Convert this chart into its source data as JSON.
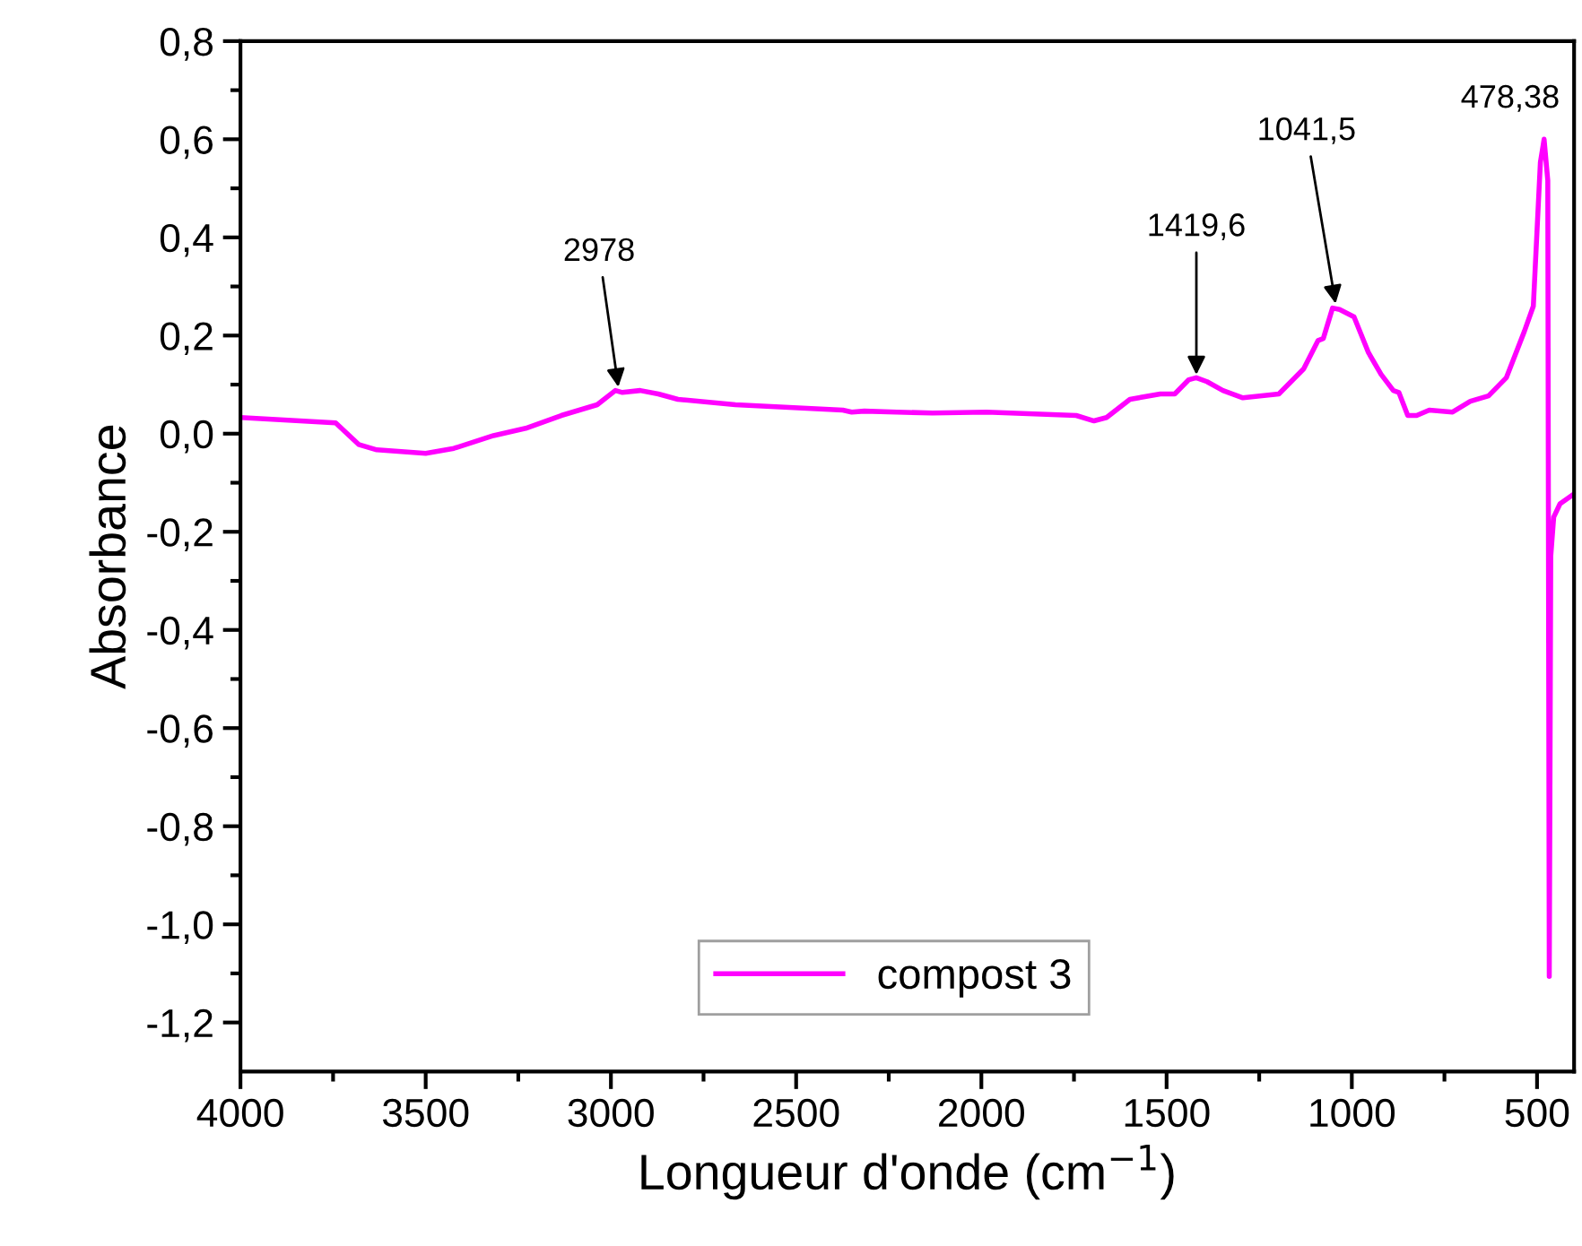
{
  "chart_data": {
    "type": "line",
    "xlabel": "Longueur d'onde (cm$^{−1}$)",
    "ylabel": "Absorbance",
    "xlim": [
      4000,
      400
    ],
    "ylim": [
      -1.3,
      0.8
    ],
    "xticks": [
      4000,
      {
        "value": 3750,
        "label": null
      },
      3500,
      {
        "value": 3250,
        "label": null
      },
      3000,
      {
        "value": 2750,
        "label": null
      },
      2500,
      {
        "value": 2250,
        "label": null
      },
      2000,
      {
        "value": 1750,
        "label": null
      },
      1500,
      {
        "value": 1250,
        "label": null
      },
      1000,
      {
        "value": 750,
        "label": null
      },
      500
    ],
    "yticks": [
      {
        "value": -1.2,
        "label": "-1,2"
      },
      {
        "value": -1.1,
        "label": null
      },
      {
        "value": -1.0,
        "label": "-1,0"
      },
      {
        "value": -0.9,
        "label": null
      },
      {
        "value": -0.8,
        "label": "-0,8"
      },
      {
        "value": -0.7,
        "label": null
      },
      {
        "value": -0.6,
        "label": "-0,6"
      },
      {
        "value": -0.5,
        "label": null
      },
      {
        "value": -0.4,
        "label": "-0,4"
      },
      {
        "value": -0.3,
        "label": null
      },
      {
        "value": -0.2,
        "label": "-0,2"
      },
      {
        "value": -0.1,
        "label": null
      },
      {
        "value": 0.0,
        "label": "0,0"
      },
      {
        "value": 0.1,
        "label": null
      },
      {
        "value": 0.2,
        "label": "0,2"
      },
      {
        "value": 0.3,
        "label": null
      },
      {
        "value": 0.4,
        "label": "0,4"
      },
      {
        "value": 0.5,
        "label": null
      },
      {
        "value": 0.6,
        "label": "0,6"
      },
      {
        "value": 0.7,
        "label": null
      },
      {
        "value": 0.8,
        "label": "0,8"
      }
    ],
    "grid": false,
    "legend": "bottom",
    "marker": "none",
    "line_style": "solid",
    "annotations": [
      {
        "text": "2978",
        "x": 2978,
        "y": 0.085
      },
      {
        "text": "1419,6",
        "x": 1419.6,
        "y": 0.11
      },
      {
        "text": "1041,5",
        "x": 1041.5,
        "y": 0.255
      },
      {
        "text": "478,38",
        "x": 478.38,
        "y": 0.6
      }
    ],
    "series": [
      {
        "name": "compost 3",
        "color": "#ff00ff",
        "x": [
          4000,
          3743,
          3681,
          3632,
          3500,
          3424,
          3317,
          3230,
          3134,
          3037,
          2988,
          2969,
          2921,
          2872,
          2819,
          2664,
          2374,
          2350,
          2316,
          2228,
          2132,
          1986,
          1744,
          1696,
          1662,
          1599,
          1517,
          1478,
          1440,
          1420,
          1391,
          1348,
          1294,
          1197,
          1130,
          1091,
          1077,
          1052,
          1033,
          994,
          955,
          921,
          888,
          873,
          849,
          825,
          791,
          728,
          680,
          631,
          583,
          534,
          510,
          491,
          481,
          471,
          467,
          463,
          455,
          438,
          404
        ],
        "values": [
          0.033,
          0.022,
          -0.022,
          -0.033,
          -0.04,
          -0.03,
          -0.004,
          0.011,
          0.037,
          0.059,
          0.088,
          0.084,
          0.088,
          0.081,
          0.07,
          0.059,
          0.048,
          0.044,
          0.046,
          0.044,
          0.042,
          0.044,
          0.037,
          0.026,
          0.033,
          0.07,
          0.081,
          0.081,
          0.11,
          0.114,
          0.106,
          0.088,
          0.073,
          0.081,
          0.132,
          0.19,
          0.194,
          0.256,
          0.253,
          0.238,
          0.165,
          0.121,
          0.088,
          0.084,
          0.037,
          0.037,
          0.048,
          0.044,
          0.066,
          0.077,
          0.114,
          0.209,
          0.26,
          0.553,
          0.6,
          0.516,
          -1.106,
          -0.25,
          -0.17,
          -0.143,
          -0.125
        ]
      }
    ]
  }
}
